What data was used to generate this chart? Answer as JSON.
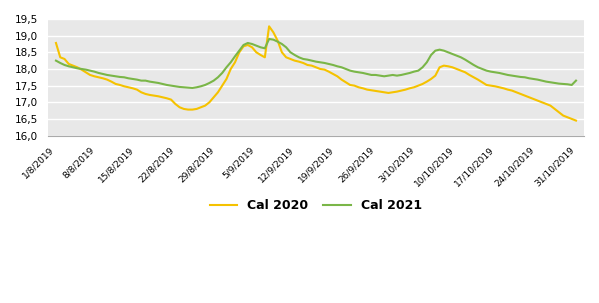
{
  "x_labels": [
    "1/8/2019",
    "8/8/2019",
    "15/8/2019",
    "22/8/2019",
    "29/8/2019",
    "5/9/2019",
    "12/9/2019",
    "19/9/2019",
    "26/9/2019",
    "3/10/2019",
    "10/10/2019",
    "17/10/2019",
    "24/10/2019",
    "31/10/2019"
  ],
  "cal2020_color": "#f5c200",
  "cal2021_color": "#7ab648",
  "plot_bg_color": "#e8e8e8",
  "fig_bg_color": "#ffffff",
  "grid_color": "#ffffff",
  "ylim": [
    16.0,
    19.5
  ],
  "yticks": [
    16.0,
    16.5,
    17.0,
    17.5,
    18.0,
    18.5,
    19.0,
    19.5
  ],
  "legend_cal2020": "Cal 2020",
  "legend_cal2021": "Cal 2021",
  "linewidth": 1.5,
  "cal2020": [
    18.78,
    18.35,
    18.3,
    18.15,
    18.1,
    18.05,
    17.98,
    17.9,
    17.82,
    17.78,
    17.75,
    17.72,
    17.68,
    17.62,
    17.55,
    17.52,
    17.48,
    17.45,
    17.42,
    17.38,
    17.3,
    17.25,
    17.22,
    17.2,
    17.18,
    17.15,
    17.12,
    17.08,
    16.95,
    16.85,
    16.8,
    16.78,
    16.78,
    16.8,
    16.85,
    16.9,
    17.0,
    17.15,
    17.3,
    17.5,
    17.7,
    18.0,
    18.2,
    18.5,
    18.68,
    18.72,
    18.65,
    18.5,
    18.42,
    18.35,
    19.28,
    19.1,
    18.85,
    18.5,
    18.35,
    18.3,
    18.25,
    18.22,
    18.18,
    18.12,
    18.1,
    18.05,
    18.0,
    17.98,
    17.92,
    17.85,
    17.78,
    17.68,
    17.6,
    17.52,
    17.5,
    17.45,
    17.42,
    17.38,
    17.36,
    17.34,
    17.32,
    17.3,
    17.28,
    17.3,
    17.32,
    17.35,
    17.38,
    17.42,
    17.45,
    17.5,
    17.55,
    17.62,
    17.7,
    17.8,
    18.05,
    18.1,
    18.08,
    18.05,
    18.0,
    17.95,
    17.9,
    17.82,
    17.75,
    17.68,
    17.6,
    17.52,
    17.5,
    17.48,
    17.45,
    17.42,
    17.38,
    17.35,
    17.3,
    17.25,
    17.2,
    17.15,
    17.1,
    17.05,
    17.0,
    16.95,
    16.9,
    16.8,
    16.7,
    16.6,
    16.55,
    16.5,
    16.45
  ],
  "cal2021": [
    18.25,
    18.18,
    18.12,
    18.08,
    18.05,
    18.02,
    18.0,
    17.98,
    17.95,
    17.92,
    17.88,
    17.85,
    17.82,
    17.8,
    17.78,
    17.76,
    17.75,
    17.72,
    17.7,
    17.68,
    17.65,
    17.65,
    17.62,
    17.6,
    17.58,
    17.55,
    17.52,
    17.5,
    17.48,
    17.46,
    17.45,
    17.44,
    17.43,
    17.45,
    17.48,
    17.52,
    17.58,
    17.65,
    17.75,
    17.88,
    18.05,
    18.2,
    18.38,
    18.55,
    18.72,
    18.78,
    18.75,
    18.7,
    18.65,
    18.62,
    18.9,
    18.88,
    18.82,
    18.75,
    18.65,
    18.5,
    18.42,
    18.35,
    18.3,
    18.28,
    18.25,
    18.22,
    18.2,
    18.18,
    18.15,
    18.12,
    18.08,
    18.05,
    18.0,
    17.95,
    17.92,
    17.9,
    17.88,
    17.85,
    17.82,
    17.82,
    17.8,
    17.78,
    17.8,
    17.82,
    17.8,
    17.82,
    17.85,
    17.88,
    17.92,
    17.95,
    18.05,
    18.2,
    18.42,
    18.55,
    18.58,
    18.55,
    18.5,
    18.45,
    18.4,
    18.35,
    18.28,
    18.2,
    18.12,
    18.05,
    18.0,
    17.95,
    17.92,
    17.9,
    17.88,
    17.85,
    17.82,
    17.8,
    17.78,
    17.76,
    17.75,
    17.72,
    17.7,
    17.68,
    17.65,
    17.62,
    17.6,
    17.58,
    17.56,
    17.55,
    17.54,
    17.52,
    17.65
  ]
}
